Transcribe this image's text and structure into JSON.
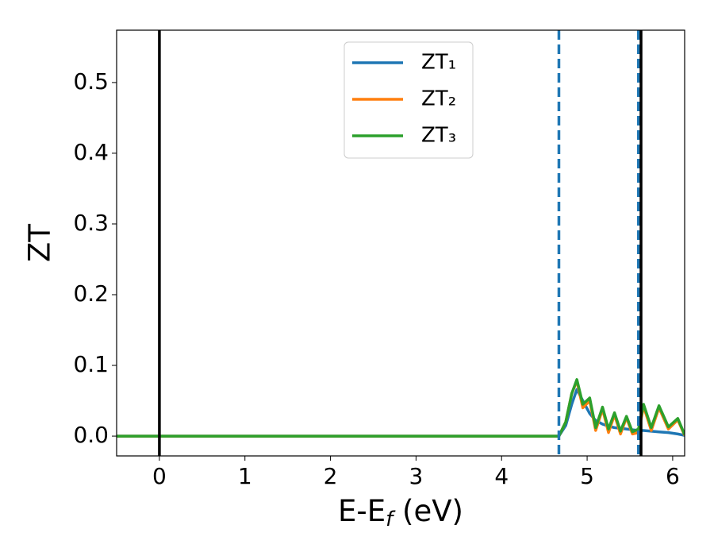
{
  "chart_data": {
    "type": "line",
    "xlabel": [
      "E-E",
      "f",
      " (eV)"
    ],
    "ylabel": "ZT",
    "x": [
      -0.5,
      4.6,
      4.67,
      4.75,
      4.82,
      4.88,
      4.95,
      5.03,
      5.1,
      5.18,
      5.25,
      5.32,
      5.39,
      5.46,
      5.53,
      5.6,
      5.66,
      5.75,
      5.84,
      5.95,
      6.06,
      6.14
    ],
    "series": [
      {
        "name": "ZT₁",
        "color": "#1f77b4",
        "values": [
          0,
          0,
          0,
          0.015,
          0.045,
          0.066,
          0.05,
          0.032,
          0.022,
          0.017,
          0.014,
          0.012,
          0.011,
          0.01,
          0.009,
          0.008,
          0.008,
          0.007,
          0.006,
          0.005,
          0.003,
          0.001
        ]
      },
      {
        "name": "ZT₂",
        "color": "#ff7f0e",
        "values": [
          0,
          0,
          0,
          0.02,
          0.06,
          0.078,
          0.04,
          0.05,
          0.008,
          0.038,
          0.005,
          0.03,
          0.003,
          0.026,
          0.003,
          0.005,
          0.042,
          0.008,
          0.04,
          0.01,
          0.023,
          0.001
        ]
      },
      {
        "name": "ZT₃",
        "color": "#2ca02c",
        "values": [
          0,
          0,
          0,
          0.02,
          0.06,
          0.08,
          0.045,
          0.054,
          0.012,
          0.041,
          0.01,
          0.033,
          0.007,
          0.028,
          0.006,
          0.01,
          0.045,
          0.012,
          0.043,
          0.013,
          0.025,
          0.002
        ]
      }
    ],
    "vlines": [
      {
        "x": 0,
        "color": "#000000",
        "style": "solid"
      },
      {
        "x": 4.67,
        "color": "#1f77b4",
        "style": "dashed"
      },
      {
        "x": 5.6,
        "color": "#1f77b4",
        "style": "dashed"
      },
      {
        "x": 5.63,
        "color": "#000000",
        "style": "solid"
      }
    ],
    "xlim": [
      -0.5,
      6.14
    ],
    "ylim": [
      -0.028,
      0.574
    ],
    "xticks": [
      0,
      1,
      2,
      3,
      4,
      5,
      6
    ],
    "yticks": [
      {
        "value": 0,
        "label": "0.0"
      },
      0.1,
      0.2,
      0.3,
      0.4,
      0.5
    ],
    "legend": "upper center"
  }
}
